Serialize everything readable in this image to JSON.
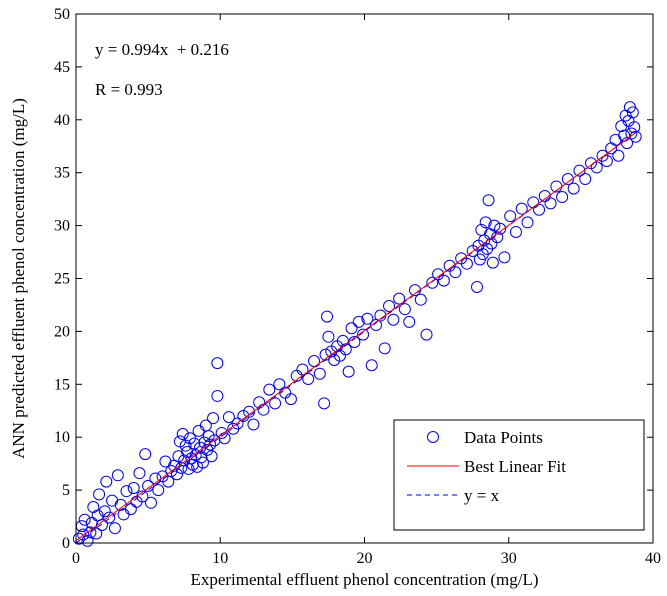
{
  "chart_data": {
    "type": "scatter",
    "title": "",
    "xlabel": "Experimental effluent phenol concentration (mg/L)",
    "ylabel": "ANN predicted effluent phenol concentration (mg/L)",
    "xlim": [
      0,
      40
    ],
    "ylim": [
      0,
      50
    ],
    "xticks": [
      "0",
      "10",
      "20",
      "30",
      "40"
    ],
    "yticks": [
      "0",
      "5",
      "10",
      "15",
      "20",
      "25",
      "30",
      "35",
      "40",
      "45",
      "50"
    ],
    "grid": false,
    "legend_position": "bottom-right",
    "annotations": {
      "equation": "y = 0.994x  + 0.216",
      "r_value": "R = 0.993"
    },
    "series": [
      {
        "name": "Data Points",
        "kind": "marker",
        "color": "#0000ff",
        "points": [
          [
            0.2,
            0.4
          ],
          [
            0.4,
            1.6
          ],
          [
            0.5,
            0.8
          ],
          [
            0.6,
            2.2
          ],
          [
            0.8,
            0.2
          ],
          [
            1.0,
            1.0
          ],
          [
            1.1,
            1.9
          ],
          [
            1.2,
            3.4
          ],
          [
            1.4,
            0.9
          ],
          [
            1.5,
            2.6
          ],
          [
            1.6,
            4.6
          ],
          [
            1.8,
            1.7
          ],
          [
            2.0,
            3.0
          ],
          [
            2.1,
            5.8
          ],
          [
            2.3,
            2.4
          ],
          [
            2.5,
            4.0
          ],
          [
            2.7,
            1.4
          ],
          [
            2.9,
            6.4
          ],
          [
            3.1,
            3.6
          ],
          [
            3.3,
            2.7
          ],
          [
            3.5,
            4.9
          ],
          [
            3.8,
            3.2
          ],
          [
            4.0,
            5.2
          ],
          [
            4.2,
            3.9
          ],
          [
            4.4,
            6.6
          ],
          [
            4.6,
            4.4
          ],
          [
            4.8,
            8.4
          ],
          [
            5.0,
            5.4
          ],
          [
            5.2,
            3.8
          ],
          [
            5.5,
            6.1
          ],
          [
            5.7,
            5.0
          ],
          [
            6.0,
            6.3
          ],
          [
            6.2,
            7.7
          ],
          [
            6.4,
            5.8
          ],
          [
            6.6,
            6.8
          ],
          [
            6.8,
            7.3
          ],
          [
            7.0,
            6.5
          ],
          [
            7.1,
            8.2
          ],
          [
            7.2,
            9.6
          ],
          [
            7.3,
            7.1
          ],
          [
            7.4,
            10.3
          ],
          [
            7.5,
            7.8
          ],
          [
            7.6,
            9.2
          ],
          [
            7.7,
            8.6
          ],
          [
            7.8,
            7.0
          ],
          [
            7.9,
            9.9
          ],
          [
            8.0,
            8.0
          ],
          [
            8.1,
            7.4
          ],
          [
            8.2,
            9.4
          ],
          [
            8.3,
            8.3
          ],
          [
            8.4,
            7.2
          ],
          [
            8.5,
            10.6
          ],
          [
            8.6,
            9.0
          ],
          [
            8.7,
            8.1
          ],
          [
            8.8,
            7.6
          ],
          [
            8.9,
            9.5
          ],
          [
            9.0,
            11.1
          ],
          [
            9.1,
            8.8
          ],
          [
            9.2,
            10.1
          ],
          [
            9.3,
            9.3
          ],
          [
            9.4,
            8.2
          ],
          [
            9.5,
            11.8
          ],
          [
            9.6,
            9.7
          ],
          [
            9.8,
            17.0
          ],
          [
            9.8,
            13.9
          ],
          [
            10.1,
            10.4
          ],
          [
            10.3,
            9.9
          ],
          [
            10.6,
            11.9
          ],
          [
            10.9,
            10.8
          ],
          [
            11.2,
            11.3
          ],
          [
            11.6,
            12.0
          ],
          [
            12.0,
            12.4
          ],
          [
            12.3,
            11.2
          ],
          [
            12.7,
            13.3
          ],
          [
            13.0,
            12.6
          ],
          [
            13.4,
            14.5
          ],
          [
            13.8,
            13.2
          ],
          [
            14.1,
            15.0
          ],
          [
            14.5,
            14.2
          ],
          [
            14.9,
            13.6
          ],
          [
            15.3,
            15.8
          ],
          [
            15.7,
            16.4
          ],
          [
            16.1,
            15.5
          ],
          [
            16.5,
            17.2
          ],
          [
            16.9,
            16.0
          ],
          [
            17.2,
            13.2
          ],
          [
            17.3,
            17.8
          ],
          [
            17.4,
            21.4
          ],
          [
            17.5,
            19.5
          ],
          [
            17.7,
            18.1
          ],
          [
            17.9,
            17.3
          ],
          [
            18.1,
            18.6
          ],
          [
            18.3,
            17.7
          ],
          [
            18.5,
            19.1
          ],
          [
            18.7,
            18.3
          ],
          [
            18.9,
            16.2
          ],
          [
            19.1,
            20.3
          ],
          [
            19.3,
            19.0
          ],
          [
            19.6,
            20.9
          ],
          [
            19.9,
            19.7
          ],
          [
            20.2,
            21.2
          ],
          [
            20.5,
            16.8
          ],
          [
            20.8,
            20.6
          ],
          [
            21.1,
            21.5
          ],
          [
            21.4,
            18.4
          ],
          [
            21.7,
            22.4
          ],
          [
            22.0,
            21.1
          ],
          [
            22.4,
            23.1
          ],
          [
            22.8,
            22.1
          ],
          [
            23.1,
            20.9
          ],
          [
            23.5,
            23.9
          ],
          [
            23.9,
            23.0
          ],
          [
            24.3,
            19.7
          ],
          [
            24.7,
            24.6
          ],
          [
            25.1,
            25.4
          ],
          [
            25.5,
            24.8
          ],
          [
            25.9,
            26.2
          ],
          [
            26.3,
            25.6
          ],
          [
            26.7,
            26.9
          ],
          [
            27.1,
            26.4
          ],
          [
            27.5,
            27.6
          ],
          [
            27.8,
            24.2
          ],
          [
            27.9,
            28.1
          ],
          [
            28.0,
            26.8
          ],
          [
            28.1,
            29.6
          ],
          [
            28.2,
            27.3
          ],
          [
            28.3,
            28.6
          ],
          [
            28.4,
            30.3
          ],
          [
            28.5,
            27.8
          ],
          [
            28.6,
            32.4
          ],
          [
            28.7,
            29.2
          ],
          [
            28.8,
            28.3
          ],
          [
            28.9,
            26.5
          ],
          [
            29.0,
            30.0
          ],
          [
            29.2,
            28.9
          ],
          [
            29.4,
            29.7
          ],
          [
            29.7,
            27.0
          ],
          [
            30.1,
            30.9
          ],
          [
            30.5,
            29.4
          ],
          [
            30.9,
            31.6
          ],
          [
            31.3,
            30.3
          ],
          [
            31.7,
            32.2
          ],
          [
            32.1,
            31.5
          ],
          [
            32.5,
            32.8
          ],
          [
            32.9,
            32.1
          ],
          [
            33.3,
            33.7
          ],
          [
            33.7,
            32.7
          ],
          [
            34.1,
            34.4
          ],
          [
            34.5,
            33.5
          ],
          [
            34.9,
            35.2
          ],
          [
            35.3,
            34.4
          ],
          [
            35.7,
            35.9
          ],
          [
            36.1,
            35.5
          ],
          [
            36.5,
            36.6
          ],
          [
            36.8,
            36.1
          ],
          [
            37.1,
            37.3
          ],
          [
            37.4,
            38.1
          ],
          [
            37.6,
            36.6
          ],
          [
            37.8,
            39.4
          ],
          [
            38.0,
            38.5
          ],
          [
            38.1,
            40.4
          ],
          [
            38.2,
            37.8
          ],
          [
            38.3,
            39.9
          ],
          [
            38.4,
            41.2
          ],
          [
            38.5,
            38.7
          ],
          [
            38.6,
            40.7
          ],
          [
            38.7,
            39.3
          ],
          [
            38.8,
            38.4
          ]
        ]
      },
      {
        "name": "Best Linear Fit",
        "kind": "line",
        "color": "#ff0000",
        "slope": 0.994,
        "intercept": 0.216,
        "x_range": [
          0,
          38.8
        ]
      },
      {
        "name": "y = x",
        "kind": "dashed-line",
        "color": "#0000ff",
        "slope": 1,
        "intercept": 0,
        "x_range": [
          0,
          38.8
        ]
      }
    ]
  }
}
